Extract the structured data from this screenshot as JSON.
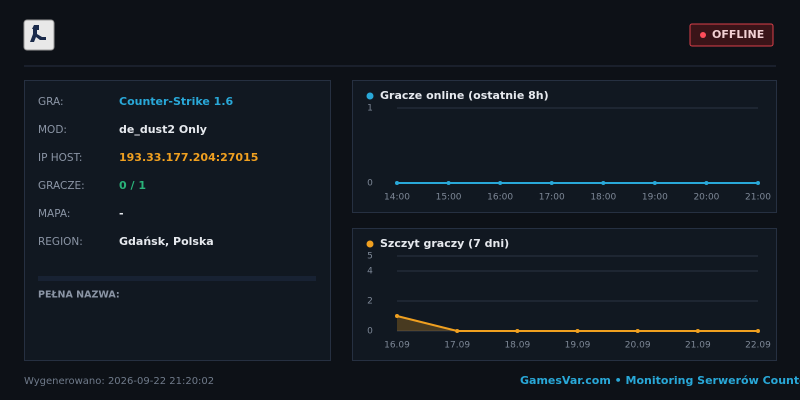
{
  "status": "OFFLINE",
  "info": {
    "rows": [
      {
        "label": "GRA:",
        "value": "Counter-Strike 1.6"
      },
      {
        "label": "MOD:",
        "value": "de_dust2 Only"
      },
      {
        "label": "IP HOST:",
        "value": "193.33.177.204:27015"
      },
      {
        "label": "GRACZE:",
        "value": "0 / 1"
      },
      {
        "label": "MAPA:",
        "value": "-"
      },
      {
        "label": "REGION:",
        "value": "Gdańsk, Polska"
      }
    ],
    "full_name_label": "PEŁNA NAZWA:"
  },
  "chart_data": [
    {
      "type": "line",
      "title": "Gracze online (ostatnie 8h)",
      "categories": [
        "14:00",
        "15:00",
        "16:00",
        "17:00",
        "18:00",
        "19:00",
        "20:00",
        "21:00"
      ],
      "values": [
        0,
        0,
        0,
        0,
        0,
        0,
        0,
        0
      ],
      "color": "#29a8d8",
      "ylim": [
        0,
        1
      ],
      "yticks": [
        0,
        1
      ],
      "grid": true
    },
    {
      "type": "area",
      "title": "Szczyt graczy (7 dni)",
      "categories": [
        "16.09",
        "17.09",
        "18.09",
        "19.09",
        "20.09",
        "21.09",
        "22.09"
      ],
      "values": [
        1,
        0,
        0,
        0,
        0,
        0,
        0
      ],
      "color": "#f0a020",
      "ylim": [
        0,
        5
      ],
      "yticks": [
        0,
        2,
        4,
        5
      ],
      "grid": true
    }
  ],
  "footer": {
    "generated": "Wygenerowano: 2026-09-22 21:20:02",
    "brand": "GamesVar.com • Monitoring Serwerów Counter"
  }
}
